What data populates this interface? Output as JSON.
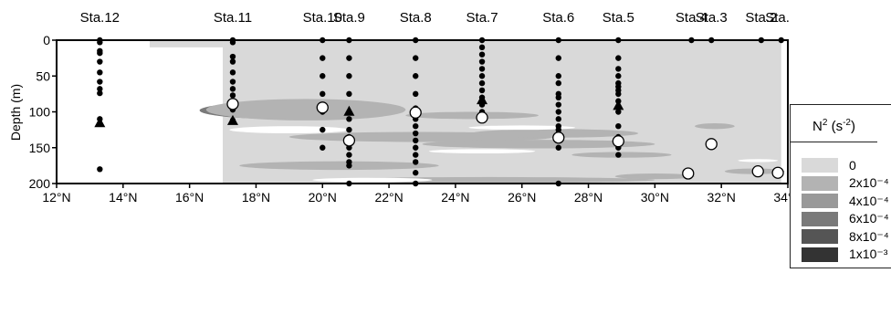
{
  "chart_data": {
    "type": "contour",
    "xlabel": "",
    "ylabel": "Depth (m)",
    "xlim": [
      12,
      34
    ],
    "ylim": [
      200,
      0
    ],
    "x_ticks": [
      {
        "value": 12,
        "label": "12°N"
      },
      {
        "value": 14,
        "label": "14°N"
      },
      {
        "value": 16,
        "label": "16°N"
      },
      {
        "value": 18,
        "label": "18°N"
      },
      {
        "value": 20,
        "label": "20°N"
      },
      {
        "value": 22,
        "label": "22°N"
      },
      {
        "value": 24,
        "label": "24°N"
      },
      {
        "value": 26,
        "label": "26°N"
      },
      {
        "value": 28,
        "label": "28°N"
      },
      {
        "value": 30,
        "label": "30°N"
      },
      {
        "value": 32,
        "label": "32°N"
      },
      {
        "value": 34,
        "label": "34°N"
      }
    ],
    "y_ticks": [
      {
        "value": 0,
        "label": "0"
      },
      {
        "value": 50,
        "label": "50"
      },
      {
        "value": 100,
        "label": "100"
      },
      {
        "value": 150,
        "label": "150"
      },
      {
        "value": 200,
        "label": "200"
      }
    ],
    "stations": [
      {
        "name": "Sta.12",
        "lat": 13.3,
        "depths": [
          0,
          3,
          15,
          18,
          30,
          45,
          58,
          68,
          74,
          110,
          117,
          180
        ]
      },
      {
        "name": "Sta.11",
        "lat": 17.3,
        "depths": [
          0,
          3,
          23,
          30,
          45,
          58,
          68,
          77,
          92,
          97,
          112
        ]
      },
      {
        "name": "Sta.10",
        "lat": 20.0,
        "depths": [
          0,
          25,
          50,
          75,
          100,
          125,
          150
        ]
      },
      {
        "name": "Sta.9",
        "lat": 20.8,
        "depths": [
          0,
          25,
          50,
          75,
          110,
          125,
          135,
          145,
          150,
          160,
          170,
          175,
          200
        ]
      },
      {
        "name": "Sta.8",
        "lat": 22.8,
        "depths": [
          0,
          25,
          50,
          75,
          95,
          110,
          120,
          130,
          140,
          150,
          160,
          170,
          185,
          200
        ]
      },
      {
        "name": "Sta.7",
        "lat": 24.8,
        "depths": [
          0,
          10,
          20,
          30,
          40,
          50,
          60,
          70,
          80,
          90,
          100
        ]
      },
      {
        "name": "Sta.6",
        "lat": 27.1,
        "depths": [
          0,
          25,
          50,
          60,
          75,
          80,
          90,
          100,
          110,
          120,
          125,
          130,
          150,
          200
        ]
      },
      {
        "name": "Sta.5",
        "lat": 28.9,
        "depths": [
          0,
          25,
          40,
          50,
          60,
          65,
          70,
          75,
          85,
          100,
          120,
          135,
          150,
          160
        ]
      },
      {
        "name": "Sta.4",
        "lat": 31.1,
        "depths": [
          0
        ]
      },
      {
        "name": "Sta.3",
        "lat": 31.7,
        "depths": [
          0
        ]
      },
      {
        "name": "Sta.2",
        "lat": 33.2,
        "depths": [
          0
        ]
      },
      {
        "name": "Sta.1",
        "lat": 33.8,
        "depths": [
          0
        ]
      }
    ],
    "open_circles": [
      {
        "lat": 17.3,
        "depth": 89
      },
      {
        "lat": 20.0,
        "depth": 94
      },
      {
        "lat": 20.8,
        "depth": 140
      },
      {
        "lat": 22.8,
        "depth": 101
      },
      {
        "lat": 24.8,
        "depth": 108
      },
      {
        "lat": 27.1,
        "depth": 136
      },
      {
        "lat": 28.9,
        "depth": 141
      },
      {
        "lat": 31.0,
        "depth": 186
      },
      {
        "lat": 31.7,
        "depth": 145
      },
      {
        "lat": 33.1,
        "depth": 183
      },
      {
        "lat": 33.7,
        "depth": 185
      }
    ],
    "triangles": [
      {
        "lat": 13.3,
        "depth": 115
      },
      {
        "lat": 17.3,
        "depth": 112
      },
      {
        "lat": 20.8,
        "depth": 99
      },
      {
        "lat": 24.8,
        "depth": 83
      },
      {
        "lat": 28.9,
        "depth": 91
      }
    ],
    "contour_levels": [
      {
        "label": "0",
        "color": "#d9d9d9"
      },
      {
        "label": "2x10⁻⁴",
        "color": "#b3b3b3"
      },
      {
        "label": "4x10⁻⁴",
        "color": "#999999"
      },
      {
        "label": "6x10⁻⁴",
        "color": "#7a7a7a"
      },
      {
        "label": "8x10⁻⁴",
        "color": "#555555"
      },
      {
        "label": "1x10⁻³",
        "color": "#333333"
      }
    ],
    "field_patches": [
      {
        "level": 5,
        "cx": 18.9,
        "cy": 100,
        "rx": 1.4,
        "ry": 6
      },
      {
        "level": 4,
        "cx": 18.6,
        "cy": 98,
        "rx": 1.8,
        "ry": 8
      },
      {
        "level": 3,
        "cx": 18.8,
        "cy": 98,
        "rx": 2.5,
        "ry": 12
      },
      {
        "level": 2,
        "cx": 21.8,
        "cy": 135,
        "rx": 1.5,
        "ry": 6
      },
      {
        "level": 1,
        "cx": 19.5,
        "cy": 97,
        "rx": 3.0,
        "ry": 15
      },
      {
        "level": 1,
        "cx": 23.0,
        "cy": 135,
        "rx": 4.0,
        "ry": 7
      },
      {
        "level": 1,
        "cx": 24.5,
        "cy": 105,
        "rx": 2.0,
        "ry": 5
      },
      {
        "level": 1,
        "cx": 26.5,
        "cy": 145,
        "rx": 3.5,
        "ry": 6
      },
      {
        "level": 1,
        "cx": 27.0,
        "cy": 130,
        "rx": 2.5,
        "ry": 6
      },
      {
        "level": 1,
        "cx": 29.0,
        "cy": 160,
        "rx": 1.5,
        "ry": 4
      },
      {
        "level": 1,
        "cx": 20.5,
        "cy": 175,
        "rx": 3.0,
        "ry": 6
      },
      {
        "level": 1,
        "cx": 31.8,
        "cy": 120,
        "rx": 0.6,
        "ry": 4
      },
      {
        "level": 1,
        "cx": 30.0,
        "cy": 190,
        "rx": 1.2,
        "ry": 4
      },
      {
        "level": 1,
        "cx": 33.0,
        "cy": 183,
        "rx": 0.9,
        "ry": 4
      },
      {
        "level": 1,
        "cx": 25.0,
        "cy": 195,
        "rx": 5.0,
        "ry": 4
      },
      {
        "level": 0,
        "cx": 19.0,
        "cy": 125,
        "rx": 1.8,
        "ry": 5,
        "white": true
      },
      {
        "level": 0,
        "cx": 26.0,
        "cy": 122,
        "rx": 1.6,
        "ry": 3,
        "white": true
      },
      {
        "level": 0,
        "cx": 24.8,
        "cy": 155,
        "rx": 1.6,
        "ry": 3,
        "white": true
      },
      {
        "level": 0,
        "cx": 21.5,
        "cy": 195,
        "rx": 1.8,
        "ry": 3,
        "white": true
      },
      {
        "level": 0,
        "cx": 33.1,
        "cy": 168,
        "rx": 0.6,
        "ry": 2,
        "white": true
      }
    ],
    "legend": {
      "title": "N",
      "title_sup": "2",
      "title_rest": " (s",
      "title_unit_sup": "-2",
      "title_close": ")",
      "placement": "right"
    }
  }
}
